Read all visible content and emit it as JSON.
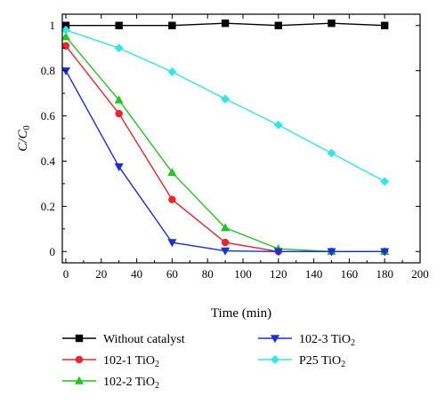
{
  "chart_data": {
    "type": "line",
    "xlabel": "Time (min)",
    "ylabel": "C/C",
    "ylabel_sub": "0",
    "xlim": [
      -2,
      200
    ],
    "ylim": [
      -0.05,
      1.05
    ],
    "xticks": [
      0,
      20,
      40,
      60,
      80,
      100,
      120,
      140,
      160,
      180,
      200
    ],
    "xtick_labels": [
      "0",
      "20",
      "40",
      "60",
      "80",
      "100",
      "120",
      "140",
      "160",
      "180",
      "200"
    ],
    "yticks": [
      0,
      0.2,
      0.4,
      0.6,
      0.8,
      1
    ],
    "ytick_labels": [
      "0",
      "0.2",
      "0.4",
      "0.6",
      "0.8",
      "1"
    ],
    "grid": false,
    "legend_position": "bottom-outside",
    "series": [
      {
        "name": "Without catalyst",
        "name_main": "Without catalyst",
        "name_sub": "",
        "name_tail": "",
        "color": "#000000",
        "marker": "square",
        "x": [
          0,
          30,
          60,
          90,
          120,
          150,
          180
        ],
        "y": [
          1.0,
          1.0,
          1.0,
          1.01,
          1.0,
          1.01,
          1.0
        ]
      },
      {
        "name": "102-1 TiO2",
        "name_main": "102-1 TiO",
        "name_sub": "2",
        "name_tail": "",
        "color": "#e8262b",
        "marker": "circle",
        "x": [
          0,
          30,
          60,
          90,
          120,
          150,
          180
        ],
        "y": [
          0.91,
          0.61,
          0.23,
          0.04,
          0.0,
          0.0,
          0.0
        ]
      },
      {
        "name": "102-2 TiO2",
        "name_main": "102-2 TiO",
        "name_sub": "2",
        "name_tail": "",
        "color": "#22c322",
        "marker": "triangle-up",
        "x": [
          0,
          30,
          60,
          90,
          120,
          150,
          180
        ],
        "y": [
          0.95,
          0.67,
          0.35,
          0.105,
          0.012,
          0.0,
          0.0
        ]
      },
      {
        "name": "102-3 TiO2",
        "name_main": "102-3 TiO",
        "name_sub": "2",
        "name_tail": "",
        "color": "#1a2fd6",
        "marker": "triangle-down",
        "x": [
          0,
          30,
          60,
          90,
          120,
          150,
          180
        ],
        "y": [
          0.8,
          0.375,
          0.04,
          0.003,
          0.0,
          0.0,
          0.0
        ]
      },
      {
        "name": "P25 TiO2",
        "name_main": "P25 TiO",
        "name_sub": "2",
        "name_tail": "",
        "color": "#33e6e6",
        "marker": "diamond",
        "x": [
          0,
          30,
          60,
          90,
          120,
          150,
          180
        ],
        "y": [
          0.98,
          0.9,
          0.795,
          0.675,
          0.56,
          0.435,
          0.31
        ]
      }
    ]
  }
}
